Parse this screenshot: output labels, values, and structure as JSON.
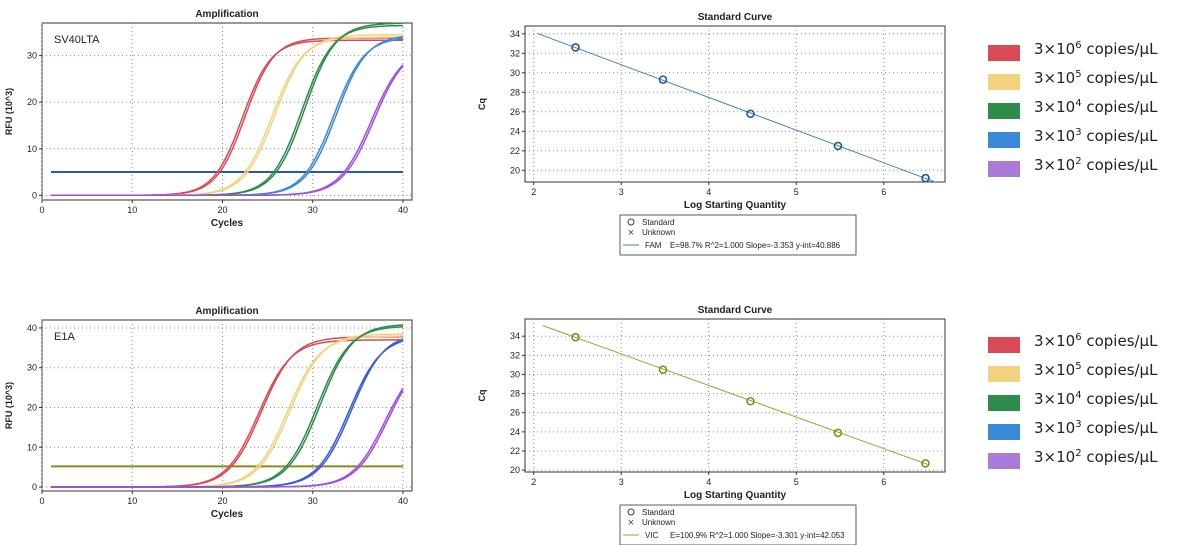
{
  "legend": {
    "items": [
      {
        "pre": "3×10",
        "exp": "6",
        "post": " copies/μL",
        "color": "#d84a55"
      },
      {
        "pre": "3×10",
        "exp": "5",
        "post": " copies/μL",
        "color": "#f2d27e"
      },
      {
        "pre": "3×10",
        "exp": "4",
        "post": " copies/μL",
        "color": "#2e8b4a"
      },
      {
        "pre": "3×10",
        "exp": "3",
        "post": " copies/μL",
        "color": "#3a8ad8"
      },
      {
        "pre": "3×10",
        "exp": "2",
        "post": " copies/μL",
        "color": "#a97ad8"
      }
    ]
  },
  "chart_data": [
    {
      "type": "line",
      "title": "Amplification",
      "xlabel": "Cycles",
      "ylabel": "RFU (10^3)",
      "annotation": "SV40LTA",
      "xlim": [
        0,
        41
      ],
      "ylim": [
        -1,
        37
      ],
      "xticks": [
        0,
        10,
        20,
        30,
        40
      ],
      "yticks": [
        0,
        10,
        20,
        30
      ],
      "threshold": 5,
      "threshold_color": "#2a5a9a",
      "series": [
        {
          "color": "#d84a55",
          "curves": [
            {
              "plateau": 33.3,
              "midpoint": 22.2,
              "slope": 1.6
            },
            {
              "plateau": 33.8,
              "midpoint": 22.5,
              "slope": 1.6
            }
          ]
        },
        {
          "color": "#f2d27e",
          "curves": [
            {
              "plateau": 34.0,
              "midpoint": 25.5,
              "slope": 1.7
            },
            {
              "plateau": 34.5,
              "midpoint": 25.8,
              "slope": 1.7
            }
          ]
        },
        {
          "color": "#2e8b4a",
          "curves": [
            {
              "plateau": 36.5,
              "midpoint": 28.8,
              "slope": 1.7
            },
            {
              "plateau": 37.0,
              "midpoint": 29.1,
              "slope": 1.7
            }
          ]
        },
        {
          "color": "#3a8ad8",
          "curves": [
            {
              "plateau": 34.0,
              "midpoint": 32.3,
              "slope": 1.7
            },
            {
              "plateau": 34.5,
              "midpoint": 32.6,
              "slope": 1.7
            }
          ]
        },
        {
          "color": "#a24ee0",
          "curves": [
            {
              "plateau": 32.0,
              "midpoint": 36.5,
              "slope": 1.8
            },
            {
              "plateau": 32.5,
              "midpoint": 36.8,
              "slope": 1.8
            }
          ]
        }
      ]
    },
    {
      "type": "scatter",
      "title": "Standard Curve",
      "xlabel": "Log Starting Quantity",
      "ylabel": "Cq",
      "xlim": [
        1.9,
        6.7
      ],
      "ylim": [
        18.8,
        34.8
      ],
      "xticks": [
        2,
        3,
        4,
        5,
        6
      ],
      "yticks": [
        20,
        22,
        24,
        26,
        28,
        30,
        32,
        34
      ],
      "x": [
        2.477,
        3.477,
        4.477,
        5.477,
        6.477
      ],
      "y": [
        32.6,
        29.3,
        25.8,
        22.5,
        19.2
      ],
      "fit": {
        "slope": -3.353,
        "intercept": 40.886,
        "x_range": [
          2.05,
          6.6
        ]
      },
      "point_color": "#1f5a9a",
      "line_color": "#4a7fb0",
      "legend": {
        "standard": "Standard",
        "unknown": "Unknown",
        "fit_label": "FAM",
        "fit_text": "E=98.7% R^2=1.000 Slope=-3.353 y-int=40.886"
      }
    },
    {
      "type": "line",
      "title": "Amplification",
      "xlabel": "Cycles",
      "ylabel": "RFU (10^3)",
      "annotation": "E1A",
      "xlim": [
        0,
        41
      ],
      "ylim": [
        -1,
        42
      ],
      "xticks": [
        0,
        10,
        20,
        30,
        40
      ],
      "yticks": [
        0,
        10,
        20,
        30,
        40
      ],
      "threshold": 5.2,
      "threshold_color": "#8a8a20",
      "series": [
        {
          "color": "#d84a55",
          "curves": [
            {
              "plateau": 37.0,
              "midpoint": 24.0,
              "slope": 1.8
            },
            {
              "plateau": 37.8,
              "midpoint": 24.3,
              "slope": 1.8
            }
          ]
        },
        {
          "color": "#f2d27e",
          "curves": [
            {
              "plateau": 38.0,
              "midpoint": 27.2,
              "slope": 1.8
            },
            {
              "plateau": 38.5,
              "midpoint": 27.5,
              "slope": 1.8
            }
          ]
        },
        {
          "color": "#2e8b4a",
          "curves": [
            {
              "plateau": 40.5,
              "midpoint": 30.5,
              "slope": 1.8
            },
            {
              "plateau": 41.0,
              "midpoint": 30.8,
              "slope": 1.8
            }
          ]
        },
        {
          "color": "#3a5ad8",
          "curves": [
            {
              "plateau": 38.0,
              "midpoint": 34.0,
              "slope": 1.8
            },
            {
              "plateau": 38.8,
              "midpoint": 34.3,
              "slope": 1.8
            }
          ]
        },
        {
          "color": "#a24ee0",
          "curves": [
            {
              "plateau": 33.0,
              "midpoint": 38.0,
              "slope": 1.8
            },
            {
              "plateau": 33.6,
              "midpoint": 38.3,
              "slope": 1.8
            }
          ]
        }
      ]
    },
    {
      "type": "scatter",
      "title": "Standard Curve",
      "xlabel": "Log Starting Quantity",
      "ylabel": "Cq",
      "xlim": [
        1.9,
        6.7
      ],
      "ylim": [
        19.8,
        35.8
      ],
      "xticks": [
        2,
        3,
        4,
        5,
        6
      ],
      "yticks": [
        20,
        22,
        24,
        26,
        28,
        30,
        32,
        34
      ],
      "x": [
        2.477,
        3.477,
        4.477,
        5.477,
        6.477
      ],
      "y": [
        33.9,
        30.5,
        27.2,
        23.9,
        20.7
      ],
      "fit": {
        "slope": -3.301,
        "intercept": 42.053,
        "x_range": [
          2.1,
          6.5
        ]
      },
      "point_color": "#8a8a20",
      "line_color": "#a0a030",
      "legend": {
        "standard": "Standard",
        "unknown": "Unknown",
        "fit_label": "VIC",
        "fit_text": "E=100.9% R^2=1.000 Slope=-3.301 y-int=42.053"
      }
    }
  ]
}
